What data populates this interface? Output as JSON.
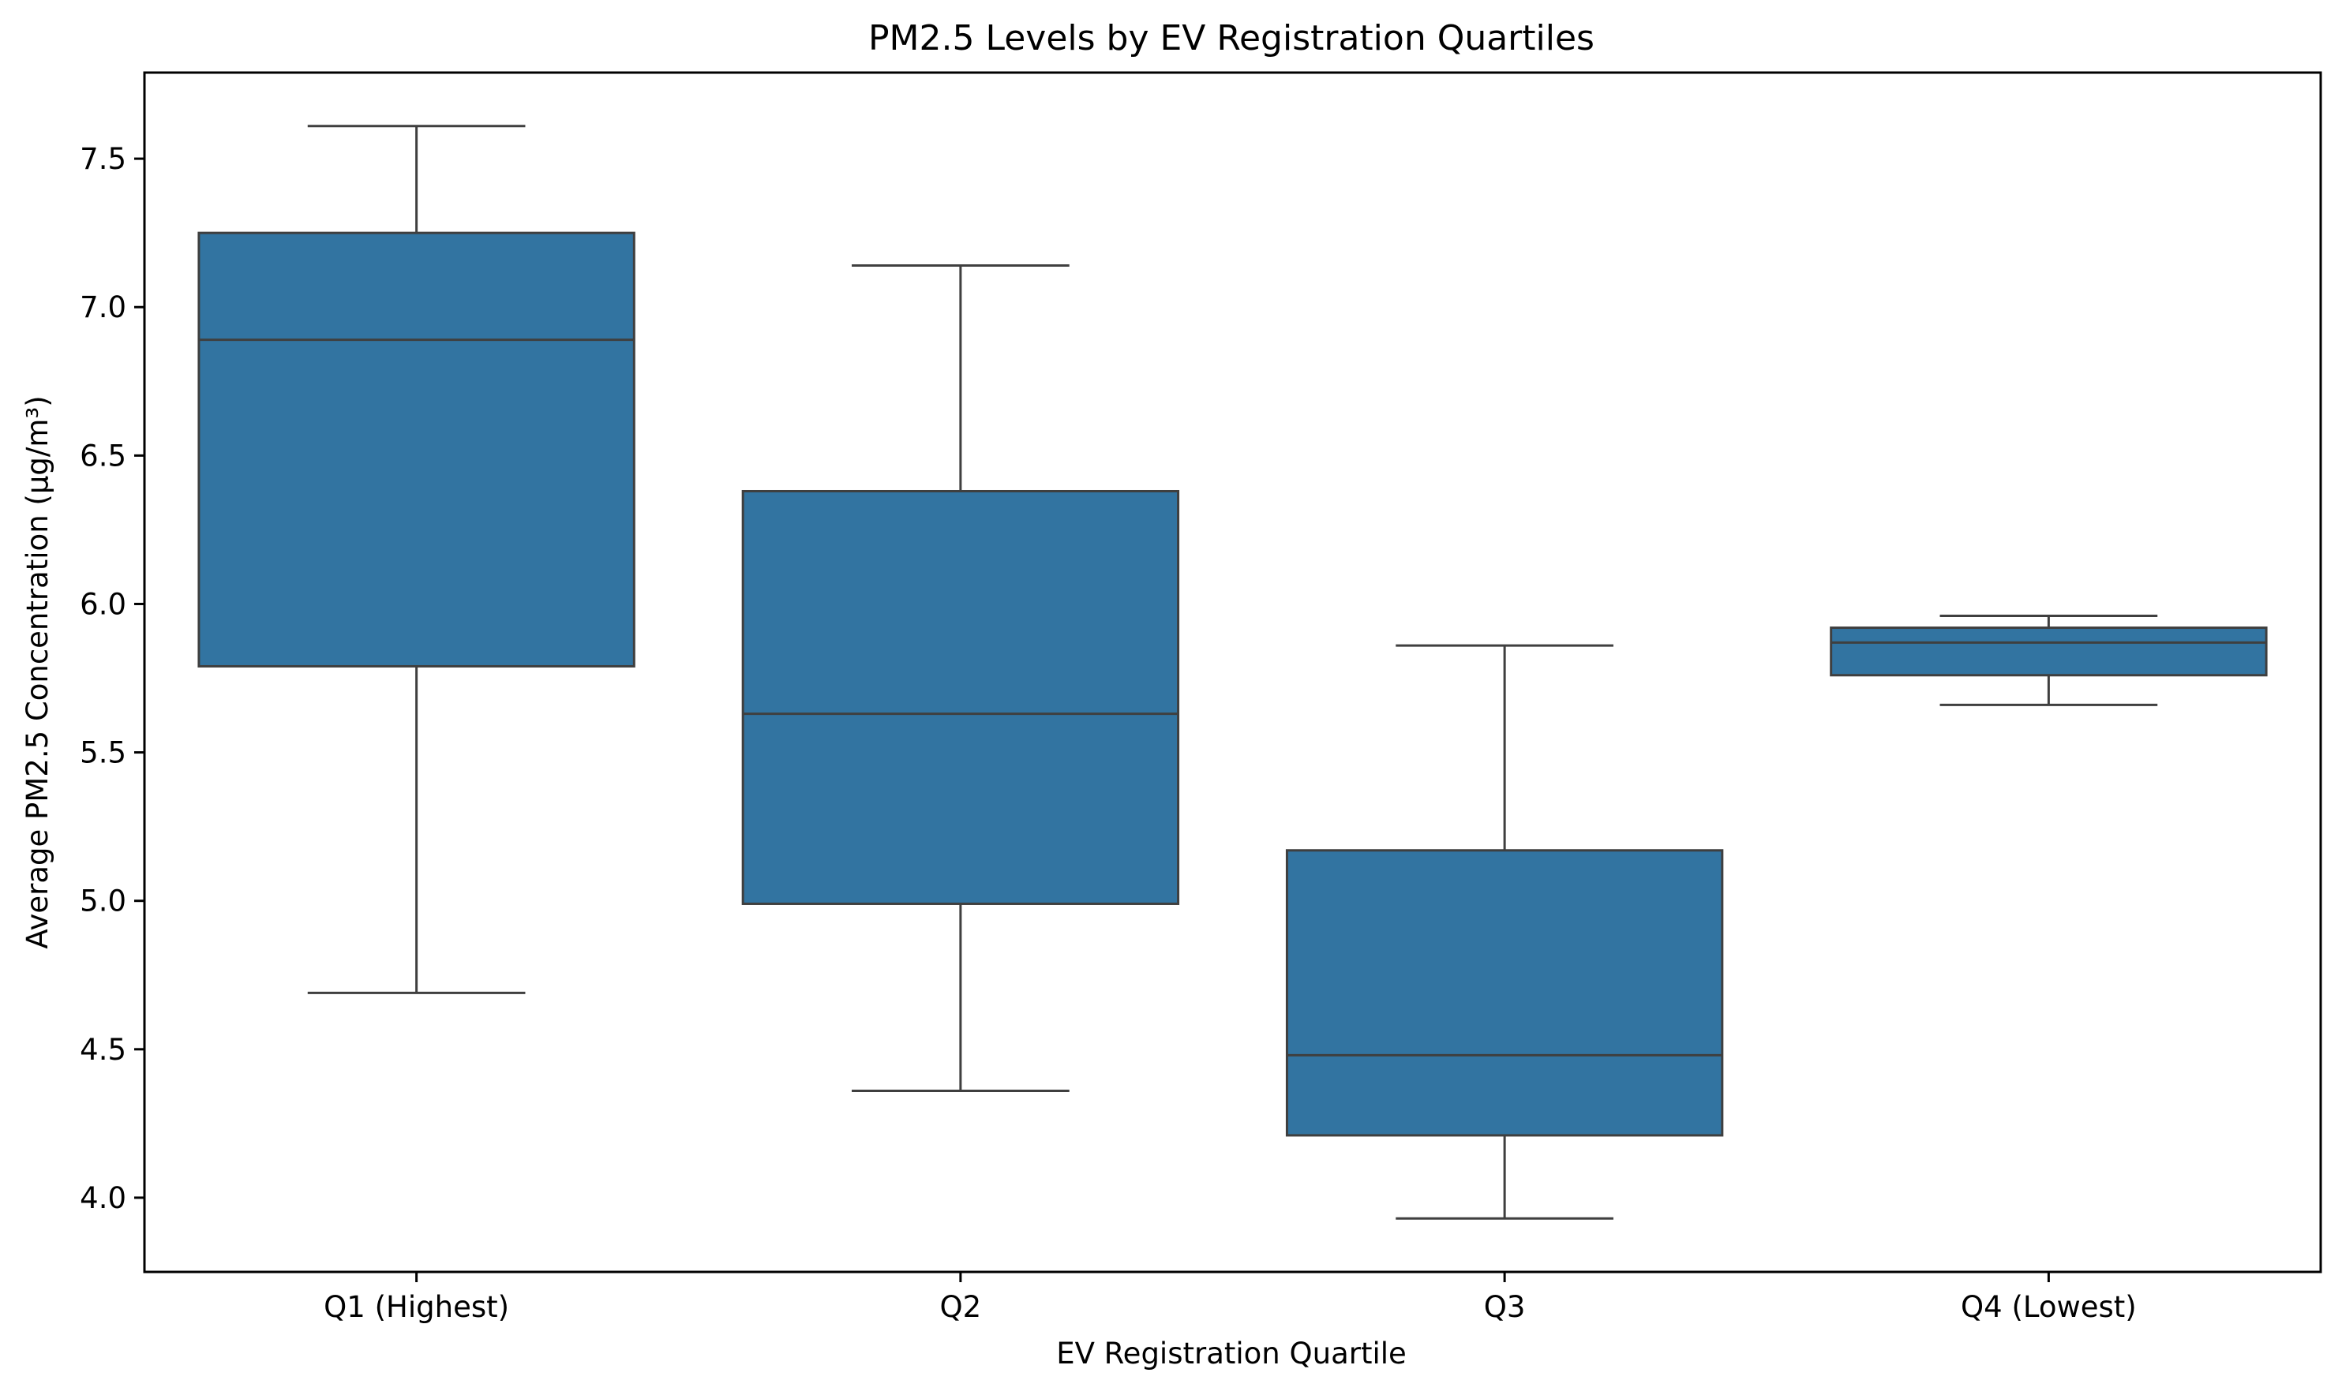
{
  "chart_data": {
    "type": "box",
    "title": "PM2.5 Levels by EV Registration Quartiles",
    "xlabel": "EV Registration Quartile",
    "ylabel": "Average PM2.5 Concentration (µg/m³)",
    "ylim": [
      3.75,
      7.79
    ],
    "yticks": [
      "4.0",
      "4.5",
      "5.0",
      "5.5",
      "6.0",
      "6.5",
      "7.0",
      "7.5"
    ],
    "grid": false,
    "legend": "none",
    "color": "#3274a1",
    "edge_color": "#3f3f3f",
    "categories": [
      "Q1 (Highest)",
      "Q2",
      "Q3",
      "Q4 (Lowest)"
    ],
    "boxes": [
      {
        "min": 4.69,
        "q1": 5.79,
        "median": 6.89,
        "q3": 7.25,
        "max": 7.61
      },
      {
        "min": 4.36,
        "q1": 4.99,
        "median": 5.63,
        "q3": 6.38,
        "max": 7.14
      },
      {
        "min": 3.93,
        "q1": 4.21,
        "median": 4.48,
        "q3": 5.17,
        "max": 5.86
      },
      {
        "min": 5.66,
        "q1": 5.76,
        "median": 5.87,
        "q3": 5.92,
        "max": 5.96
      }
    ]
  }
}
